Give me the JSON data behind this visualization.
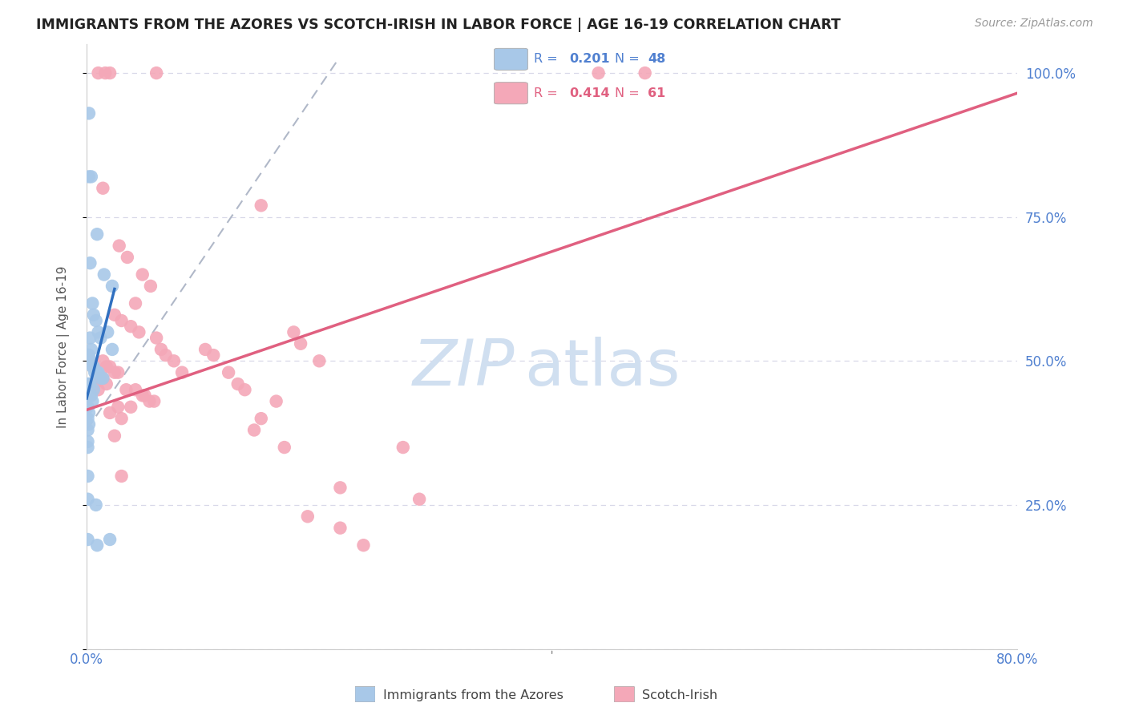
{
  "title": "IMMIGRANTS FROM THE AZORES VS SCOTCH-IRISH IN LABOR FORCE | AGE 16-19 CORRELATION CHART",
  "source": "Source: ZipAtlas.com",
  "ylabel": "In Labor Force | Age 16-19",
  "xmin": 0.0,
  "xmax": 0.8,
  "ymin": 0.0,
  "ymax": 1.05,
  "x_ticks": [
    0.0,
    0.1,
    0.2,
    0.3,
    0.4,
    0.5,
    0.6,
    0.7,
    0.8
  ],
  "x_tick_labels": [
    "0.0%",
    "",
    "",
    "",
    "",
    "",
    "",
    "",
    "80.0%"
  ],
  "y_ticks": [
    0.0,
    0.25,
    0.5,
    0.75,
    1.0
  ],
  "y_tick_labels_right": [
    "",
    "25.0%",
    "50.0%",
    "75.0%",
    "100.0%"
  ],
  "blue_color": "#a8c8e8",
  "pink_color": "#f4a8b8",
  "blue_line_color": "#3070c0",
  "pink_line_color": "#e06080",
  "dashed_line_color": "#b0b8c8",
  "watermark_zip": "ZIP",
  "watermark_atlas": "atlas",
  "watermark_color": "#d0dff0",
  "grid_color": "#d8d8e8",
  "blue_scatter": [
    [
      0.002,
      0.93
    ],
    [
      0.002,
      0.82
    ],
    [
      0.004,
      0.82
    ],
    [
      0.009,
      0.72
    ],
    [
      0.003,
      0.67
    ],
    [
      0.015,
      0.65
    ],
    [
      0.022,
      0.63
    ],
    [
      0.005,
      0.6
    ],
    [
      0.006,
      0.58
    ],
    [
      0.008,
      0.57
    ],
    [
      0.01,
      0.55
    ],
    [
      0.012,
      0.54
    ],
    [
      0.003,
      0.54
    ],
    [
      0.004,
      0.52
    ],
    [
      0.002,
      0.51
    ],
    [
      0.001,
      0.51
    ],
    [
      0.001,
      0.5
    ],
    [
      0.003,
      0.5
    ],
    [
      0.005,
      0.49
    ],
    [
      0.006,
      0.49
    ],
    [
      0.007,
      0.48
    ],
    [
      0.009,
      0.48
    ],
    [
      0.01,
      0.48
    ],
    [
      0.012,
      0.47
    ],
    [
      0.014,
      0.47
    ],
    [
      0.001,
      0.46
    ],
    [
      0.002,
      0.46
    ],
    [
      0.003,
      0.46
    ],
    [
      0.006,
      0.45
    ],
    [
      0.001,
      0.45
    ],
    [
      0.002,
      0.44
    ],
    [
      0.004,
      0.44
    ],
    [
      0.005,
      0.43
    ],
    [
      0.001,
      0.42
    ],
    [
      0.002,
      0.41
    ],
    [
      0.001,
      0.4
    ],
    [
      0.002,
      0.39
    ],
    [
      0.001,
      0.38
    ],
    [
      0.001,
      0.36
    ],
    [
      0.001,
      0.35
    ],
    [
      0.001,
      0.26
    ],
    [
      0.008,
      0.25
    ],
    [
      0.001,
      0.19
    ],
    [
      0.009,
      0.18
    ],
    [
      0.02,
      0.19
    ],
    [
      0.018,
      0.55
    ],
    [
      0.022,
      0.52
    ],
    [
      0.001,
      0.3
    ]
  ],
  "pink_scatter": [
    [
      0.01,
      1.0
    ],
    [
      0.016,
      1.0
    ],
    [
      0.02,
      1.0
    ],
    [
      0.06,
      1.0
    ],
    [
      0.48,
      1.0
    ],
    [
      0.44,
      1.0
    ],
    [
      0.014,
      0.8
    ],
    [
      0.15,
      0.77
    ],
    [
      0.028,
      0.7
    ],
    [
      0.035,
      0.68
    ],
    [
      0.048,
      0.65
    ],
    [
      0.055,
      0.63
    ],
    [
      0.042,
      0.6
    ],
    [
      0.024,
      0.58
    ],
    [
      0.03,
      0.57
    ],
    [
      0.038,
      0.56
    ],
    [
      0.045,
      0.55
    ],
    [
      0.06,
      0.54
    ],
    [
      0.064,
      0.52
    ],
    [
      0.068,
      0.51
    ],
    [
      0.075,
      0.5
    ],
    [
      0.2,
      0.5
    ],
    [
      0.014,
      0.5
    ],
    [
      0.017,
      0.49
    ],
    [
      0.02,
      0.49
    ],
    [
      0.024,
      0.48
    ],
    [
      0.027,
      0.48
    ],
    [
      0.01,
      0.47
    ],
    [
      0.014,
      0.47
    ],
    [
      0.017,
      0.46
    ],
    [
      0.007,
      0.46
    ],
    [
      0.01,
      0.45
    ],
    [
      0.034,
      0.45
    ],
    [
      0.042,
      0.45
    ],
    [
      0.048,
      0.44
    ],
    [
      0.05,
      0.44
    ],
    [
      0.054,
      0.43
    ],
    [
      0.058,
      0.43
    ],
    [
      0.027,
      0.42
    ],
    [
      0.038,
      0.42
    ],
    [
      0.02,
      0.41
    ],
    [
      0.03,
      0.4
    ],
    [
      0.15,
      0.4
    ],
    [
      0.144,
      0.38
    ],
    [
      0.024,
      0.37
    ],
    [
      0.17,
      0.35
    ],
    [
      0.272,
      0.35
    ],
    [
      0.03,
      0.3
    ],
    [
      0.218,
      0.28
    ],
    [
      0.286,
      0.26
    ],
    [
      0.19,
      0.23
    ],
    [
      0.218,
      0.21
    ],
    [
      0.238,
      0.18
    ],
    [
      0.178,
      0.55
    ],
    [
      0.184,
      0.53
    ],
    [
      0.102,
      0.52
    ],
    [
      0.109,
      0.51
    ],
    [
      0.122,
      0.48
    ],
    [
      0.13,
      0.46
    ],
    [
      0.136,
      0.45
    ],
    [
      0.163,
      0.43
    ],
    [
      0.082,
      0.48
    ]
  ],
  "blue_trend_x": [
    0.0,
    0.024
  ],
  "blue_trend_y": [
    0.435,
    0.625
  ],
  "pink_trend_x": [
    0.0,
    0.8
  ],
  "pink_trend_y": [
    0.415,
    0.965
  ],
  "dashed_line_x": [
    0.0,
    0.215
  ],
  "dashed_line_y": [
    0.38,
    1.02
  ]
}
